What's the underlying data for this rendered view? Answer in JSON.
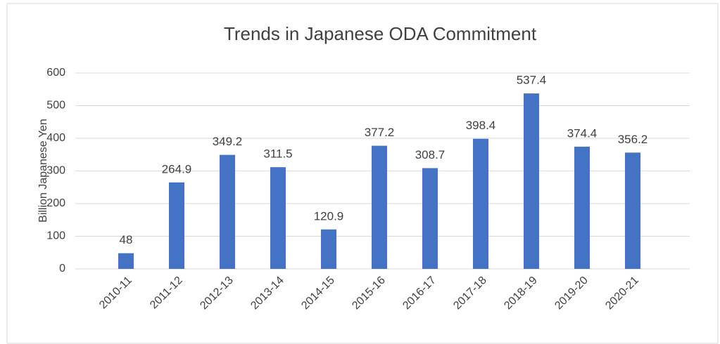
{
  "chart_data": {
    "type": "bar",
    "title": "Trends in Japanese ODA Commitment",
    "y_label": "Billion Japanese Yen",
    "categories": [
      "2010-11",
      "2011-12",
      "2012-13",
      "2013-14",
      "2014-15",
      "2015-16",
      "2016-17",
      "2017-18",
      "2018-19",
      "2019-20",
      "2020-21"
    ],
    "values": [
      48,
      264.9,
      349.2,
      311.5,
      120.9,
      377.2,
      308.7,
      398.4,
      537.4,
      374.4,
      356.2
    ],
    "color": "#4472c4",
    "ylim": [
      0,
      600
    ],
    "yticks": [
      0,
      100,
      200,
      300,
      400,
      500,
      600
    ],
    "grid": true
  }
}
